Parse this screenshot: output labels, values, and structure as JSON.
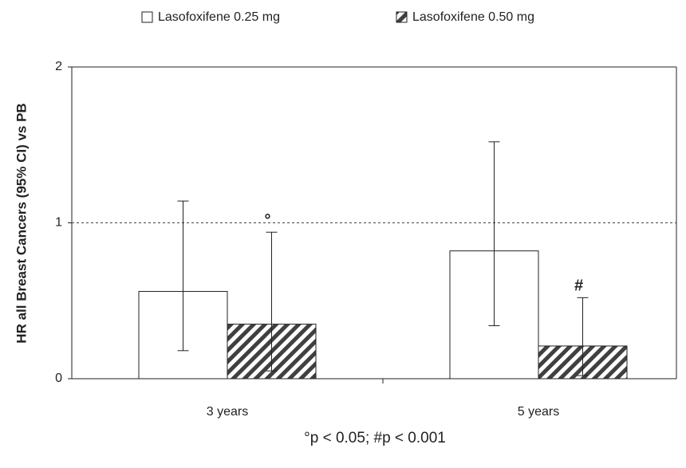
{
  "chart_data": {
    "type": "bar",
    "y_label": "HR all Breast Cancers (95% CI) vs PB",
    "categories": [
      "3 years",
      "5 years"
    ],
    "series": [
      {
        "name": "Lasofoxifene 0.25 mg",
        "color": "#ffffff",
        "pattern": "solid",
        "values": [
          0.56,
          0.82
        ],
        "ci_low": [
          0.18,
          0.34
        ],
        "ci_high": [
          1.14,
          1.52
        ],
        "annotations": [
          null,
          null
        ]
      },
      {
        "name": "Lasofoxifene 0.50 mg",
        "color": "#404040",
        "pattern": "hatch",
        "values": [
          0.35,
          0.21
        ],
        "ci_low": [
          0.05,
          0.02
        ],
        "ci_high": [
          0.94,
          0.52
        ],
        "annotations": [
          "°",
          "#"
        ]
      }
    ],
    "ylim": [
      0,
      2
    ],
    "yticks": [
      0,
      1,
      2
    ],
    "reference_line": 1,
    "footnote": "°p < 0.05; #p < 0.001"
  }
}
